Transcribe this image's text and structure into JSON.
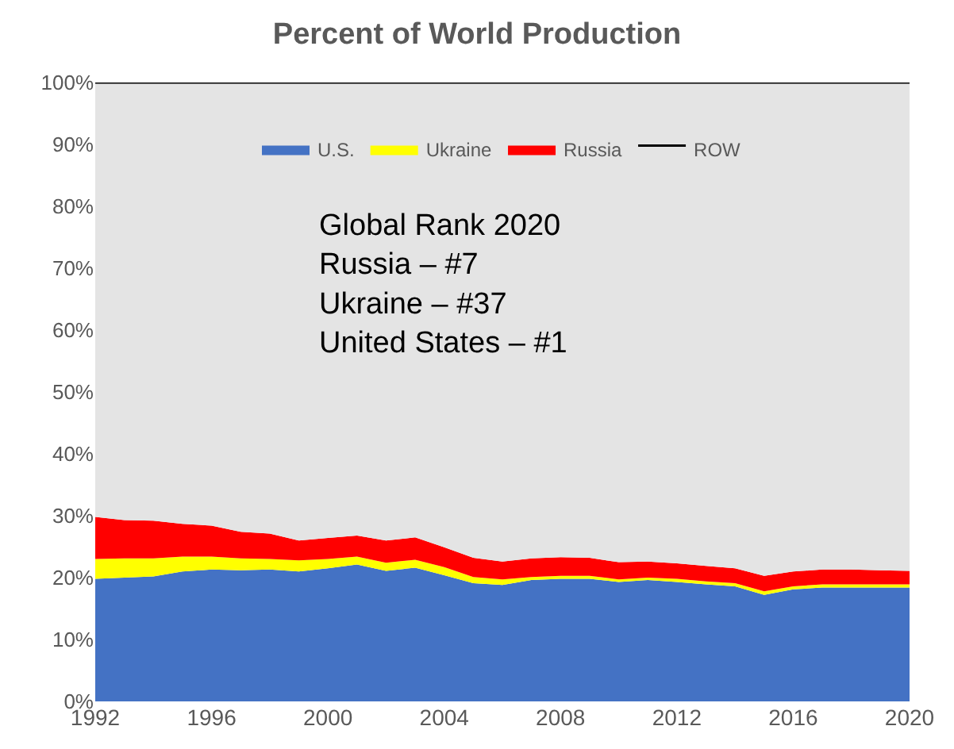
{
  "chart_data": {
    "type": "area",
    "stacked": true,
    "title": "Percent of World Production",
    "x": [
      1992,
      1993,
      1994,
      1995,
      1996,
      1997,
      1998,
      1999,
      2000,
      2001,
      2002,
      2003,
      2004,
      2005,
      2006,
      2007,
      2008,
      2009,
      2010,
      2011,
      2012,
      2013,
      2014,
      2015,
      2016,
      2017,
      2018,
      2019,
      2020
    ],
    "series": [
      {
        "name": "U.S.",
        "color": "#4472c4",
        "values": [
          19.8,
          20.0,
          20.2,
          21.0,
          21.3,
          21.2,
          21.3,
          21.0,
          21.5,
          22.1,
          21.1,
          21.6,
          20.4,
          19.1,
          18.8,
          19.6,
          19.8,
          19.8,
          19.3,
          19.6,
          19.3,
          18.9,
          18.6,
          17.2,
          18.1,
          18.4,
          18.4,
          18.4,
          18.4
        ]
      },
      {
        "name": "Ukraine",
        "color": "#ffff00",
        "values": [
          3.2,
          3.1,
          2.9,
          2.4,
          2.1,
          1.9,
          1.7,
          1.8,
          1.5,
          1.3,
          1.3,
          1.3,
          1.3,
          1.0,
          0.9,
          0.5,
          0.5,
          0.5,
          0.4,
          0.4,
          0.5,
          0.5,
          0.5,
          0.6,
          0.5,
          0.5,
          0.5,
          0.5,
          0.5
        ]
      },
      {
        "name": "Russia",
        "color": "#ff0000",
        "values": [
          6.8,
          6.2,
          6.1,
          5.3,
          5.0,
          4.3,
          4.1,
          3.2,
          3.4,
          3.4,
          3.6,
          3.6,
          3.2,
          3.1,
          2.9,
          3.0,
          3.0,
          2.9,
          2.8,
          2.6,
          2.5,
          2.5,
          2.4,
          2.5,
          2.4,
          2.4,
          2.4,
          2.3,
          2.2
        ]
      },
      {
        "name": "ROW",
        "color": "#e4e4e4",
        "values": [
          70.2,
          70.7,
          70.8,
          71.3,
          71.6,
          72.6,
          72.9,
          74.0,
          73.6,
          73.2,
          74.0,
          73.5,
          75.1,
          76.8,
          77.4,
          76.9,
          76.7,
          76.8,
          77.5,
          77.4,
          77.7,
          78.1,
          78.5,
          79.7,
          79.0,
          78.7,
          78.7,
          78.8,
          78.9
        ]
      }
    ],
    "xlim": [
      1992,
      2020
    ],
    "xticks": [
      1992,
      1996,
      2000,
      2004,
      2008,
      2012,
      2016,
      2020
    ],
    "ylim": [
      0,
      100
    ],
    "yticks": [
      {
        "value": 0,
        "label": "0%"
      },
      {
        "value": 10,
        "label": "10%"
      },
      {
        "value": 20,
        "label": "20%"
      },
      {
        "value": 30,
        "label": "30%"
      },
      {
        "value": 40,
        "label": "40%"
      },
      {
        "value": 50,
        "label": "50%"
      },
      {
        "value": 60,
        "label": "60%"
      },
      {
        "value": 70,
        "label": "70%"
      },
      {
        "value": 80,
        "label": "80%"
      },
      {
        "value": 90,
        "label": "90%"
      },
      {
        "value": 100,
        "label": "100%"
      }
    ],
    "legend": "top",
    "annotations": [
      "Global Rank 2020\nRussia – #7\nUkraine – #37\nUnited States – #1"
    ]
  }
}
